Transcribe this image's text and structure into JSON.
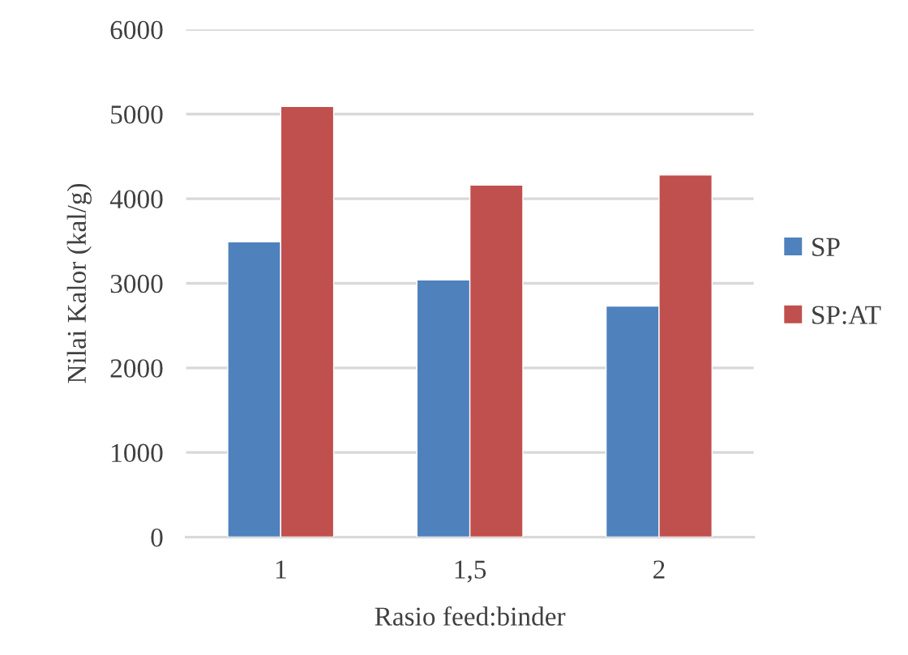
{
  "chart_data": {
    "type": "bar",
    "xlabel": "Rasio feed:binder",
    "ylabel": "Nilai Kalor (kal/g)",
    "categories": [
      "1",
      "1,5",
      "2"
    ],
    "series": [
      {
        "name": "SP",
        "color": "#4f81bd",
        "values": [
          3490,
          3040,
          2730
        ]
      },
      {
        "name": "SP:AT",
        "color": "#c0504d",
        "values": [
          5090,
          4160,
          4280
        ]
      }
    ],
    "ylim": [
      0,
      6000
    ],
    "yticks": [
      0,
      1000,
      2000,
      3000,
      4000,
      5000,
      6000
    ],
    "grid": "y",
    "legend": "right"
  }
}
